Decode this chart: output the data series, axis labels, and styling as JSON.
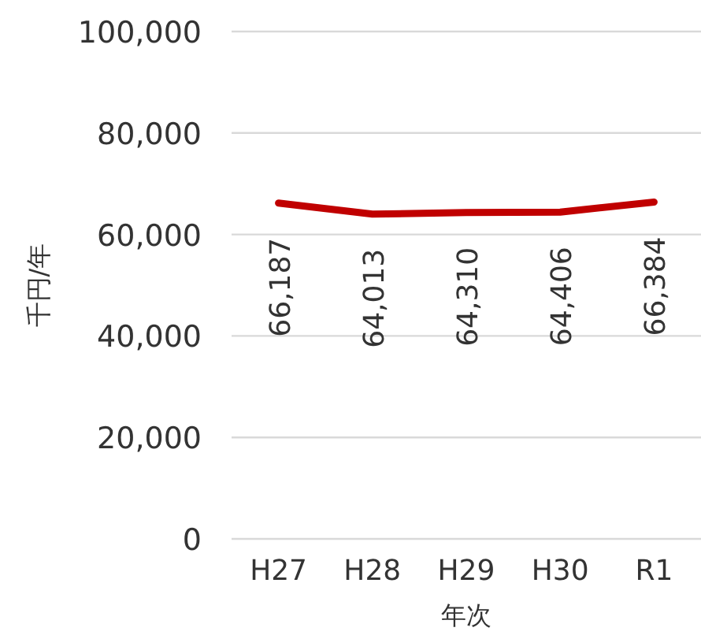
{
  "chart_data": {
    "type": "line",
    "xlabel": "年次",
    "ylabel": "千円/年",
    "categories": [
      "H27",
      "H28",
      "H29",
      "H30",
      "R1"
    ],
    "values": [
      66187,
      64013,
      64310,
      64406,
      66384
    ],
    "value_labels": [
      "66,187",
      "64,013",
      "64,310",
      "64,406",
      "66,384"
    ],
    "color": "#c00000",
    "ylim": [
      0,
      100000
    ],
    "yticks": [
      {
        "value": 0,
        "label": "0"
      },
      {
        "value": 20000,
        "label": "20,000"
      },
      {
        "value": 40000,
        "label": "40,000"
      },
      {
        "value": 60000,
        "label": "60,000"
      },
      {
        "value": 80000,
        "label": "80,000"
      },
      {
        "value": 100000,
        "label": "100,000"
      }
    ],
    "grid": "y"
  }
}
